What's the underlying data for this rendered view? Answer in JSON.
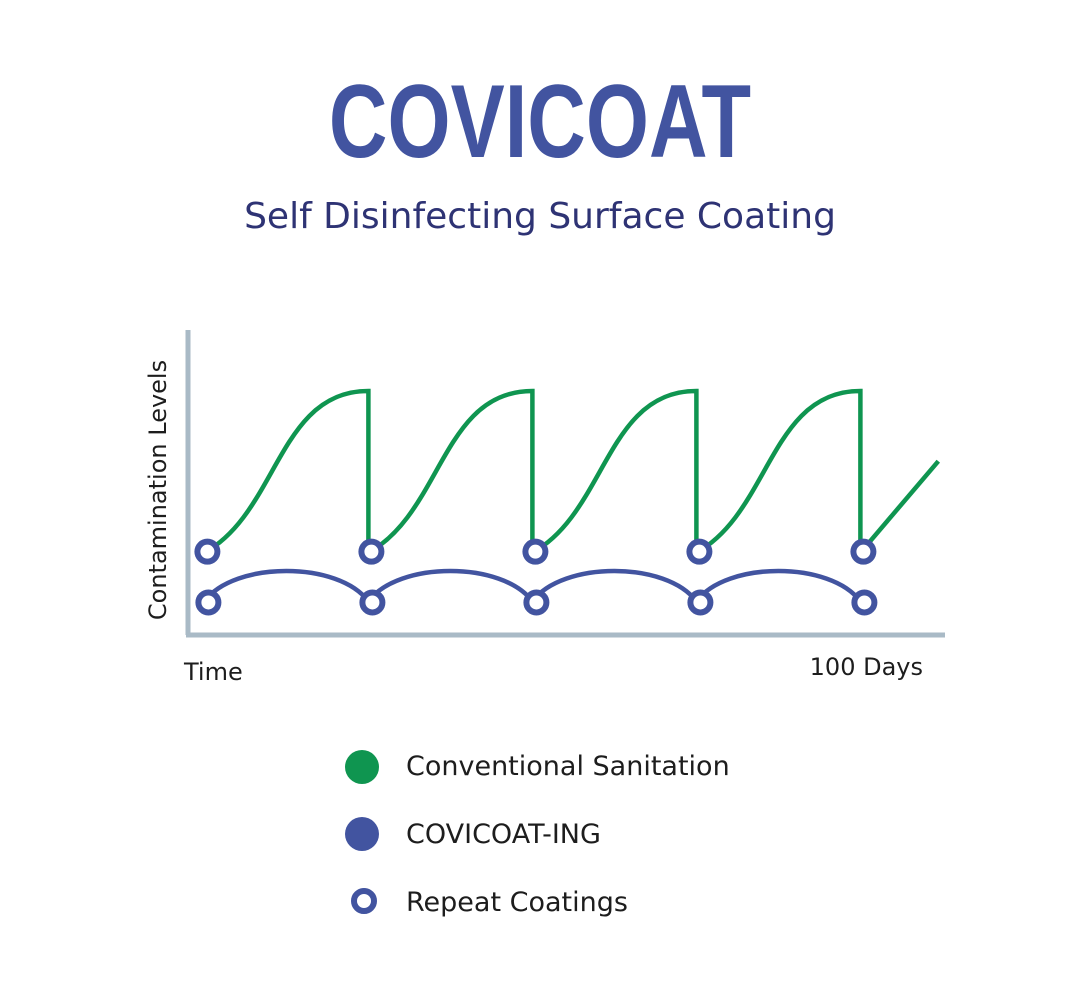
{
  "header": {
    "title": "COVICOAT",
    "subtitle": "Self Disinfecting Surface Coating"
  },
  "colors": {
    "brand_blue": "#4254a0",
    "subtitle_navy": "#2e3374",
    "conventional_green": "#0f9550",
    "axis": "#a9bac6",
    "text": "#1d1d1d"
  },
  "chart_data": {
    "type": "line",
    "ylabel": "Contamination Levels",
    "x_start_label": "Time",
    "x_end_label": "100 Days",
    "grid": false,
    "legend_position": "bottom",
    "series": [
      {
        "name": "Conventional Sanitation",
        "color": "#0f9550",
        "cycles": [
          {
            "x_start": 2,
            "x_end": 22,
            "y_start": 0.27,
            "y_end": 0.8
          },
          {
            "x_start": 22,
            "x_end": 42,
            "y_start": 0.27,
            "y_end": 0.8
          },
          {
            "x_start": 42,
            "x_end": 62,
            "y_start": 0.27,
            "y_end": 0.8
          },
          {
            "x_start": 62,
            "x_end": 82,
            "y_start": 0.27,
            "y_end": 0.8
          }
        ],
        "tail": {
          "x_start": 82,
          "x_end": 91.5,
          "y_start": 0.27,
          "y_end": 0.57
        }
      },
      {
        "name": "COVICOAT-ING",
        "color": "#4254a0",
        "cycles": [
          {
            "x_start": 2,
            "x_end": 22,
            "y_start": 0.11,
            "y_peak": 0.23
          },
          {
            "x_start": 22,
            "x_end": 42,
            "y_start": 0.11,
            "y_peak": 0.23
          },
          {
            "x_start": 42,
            "x_end": 62,
            "y_start": 0.11,
            "y_peak": 0.23
          },
          {
            "x_start": 62,
            "x_end": 82,
            "y_start": 0.11,
            "y_peak": 0.23
          }
        ]
      }
    ],
    "repeat_coatings": {
      "name": "Repeat Coatings",
      "x": [
        2,
        22,
        42,
        62,
        82
      ]
    }
  },
  "legend": {
    "items": [
      {
        "label": "Conventional Sanitation",
        "marker": "filled-circle",
        "color": "#0f9550"
      },
      {
        "label": "COVICOAT-ING",
        "marker": "filled-circle",
        "color": "#4254a0"
      },
      {
        "label": "Repeat Coatings",
        "marker": "ring",
        "color": "#4254a0"
      }
    ]
  }
}
